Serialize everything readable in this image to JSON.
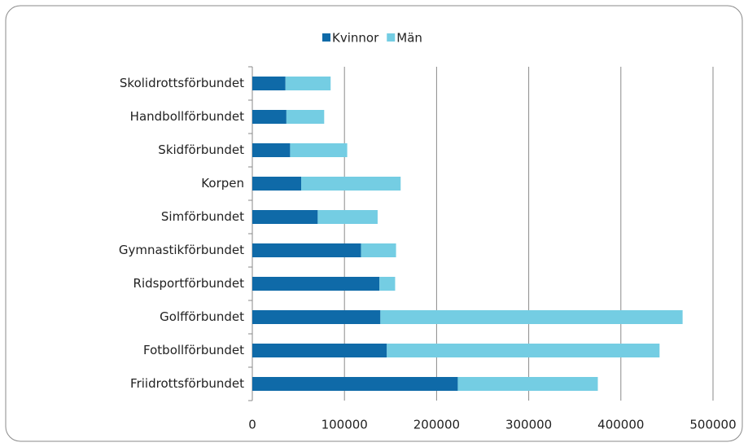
{
  "chart_data": {
    "type": "stacked_bar_horizontal",
    "categories": [
      "Skolidrottsförbundet",
      "Handbollförbundet",
      "Skidförbundet",
      "Korpen",
      "Simförbundet",
      "Gymnastikförbundet",
      "Ridsportförbundet",
      "Golfförbundet",
      "Fotbollförbundet",
      "Friidrottsförbundet"
    ],
    "series": [
      {
        "name": "Kvinnor",
        "color": "#0f6aa8",
        "values": [
          36000,
          37000,
          41000,
          53000,
          71000,
          118000,
          138000,
          139000,
          146000,
          223000
        ]
      },
      {
        "name": "Män",
        "color": "#74cde3",
        "values": [
          49000,
          41000,
          62000,
          108000,
          65000,
          38000,
          17000,
          328000,
          296000,
          152000
        ]
      }
    ],
    "xlim": [
      0,
      500000
    ],
    "xticks": [
      0,
      100000,
      200000,
      300000,
      400000,
      500000
    ],
    "grid": true,
    "legend": "top"
  }
}
